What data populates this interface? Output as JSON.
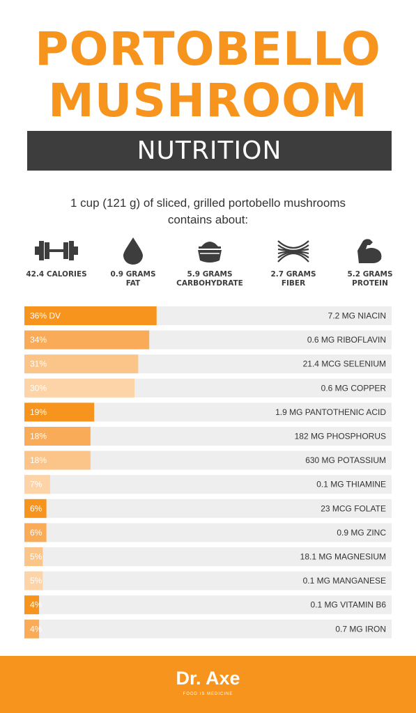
{
  "header": {
    "title_line1": "PORTOBELLO",
    "title_line2": "MUSHROOM",
    "subtitle": "NUTRITION"
  },
  "intro": {
    "line1": "1 cup (121 g) of sliced, grilled portobello mushrooms",
    "line2": "contains about:"
  },
  "stats": [
    {
      "icon": "dumbbell-icon",
      "label": "42.4 CALORIES"
    },
    {
      "icon": "drop-icon",
      "label": "0.9 GRAMS\nFAT"
    },
    {
      "icon": "bowl-icon",
      "label": "5.9 GRAMS\nCARBOHYDRATE"
    },
    {
      "icon": "fiber-icon",
      "label": "2.7 GRAMS\nFIBER"
    },
    {
      "icon": "flexed-arm-icon",
      "label": "5.2 GRAMS\nPROTEIN"
    }
  ],
  "chart_data": {
    "type": "bar",
    "orientation": "horizontal",
    "xlim": [
      0,
      100
    ],
    "categories": [
      "7.2 MG NIACIN",
      "0.6 MG RIBOFLAVIN",
      "21.4 MCG SELENIUM",
      "0.6 MG COPPER",
      "1.9 MG PANTOTHENIC ACID",
      "182 MG PHOSPHORUS",
      "630 MG POTASSIUM",
      "0.1 MG THIAMINE",
      "23 MCG FOLATE",
      "0.9 MG ZINC",
      "18.1 MG MAGNESIUM",
      "0.1 MG MANGANESE",
      "0.1 MG VITAMIN B6",
      "0.7 MG IRON"
    ],
    "values": [
      36,
      34,
      31,
      30,
      19,
      18,
      18,
      7,
      6,
      6,
      5,
      5,
      4,
      4
    ],
    "value_labels": [
      "36% DV",
      "34%",
      "31%",
      "30%",
      "19%",
      "18%",
      "18%",
      "7%",
      "6%",
      "6%",
      "5%",
      "5%",
      "4%",
      "4%"
    ],
    "bar_colors": [
      "#f7941d",
      "#f9ab57",
      "#fbc489",
      "#fcd4a8",
      "#f7941d",
      "#f9ab57",
      "#fbc489",
      "#fcd4a8",
      "#f7941d",
      "#f9ab57",
      "#fbc489",
      "#fcd4a8",
      "#f7941d",
      "#f9ab57"
    ],
    "track_color": "#eeeeee"
  },
  "footer": {
    "brand": "Dr. Axe",
    "tagline": "FOOD IS MEDICINE"
  },
  "colors": {
    "accent": "#f7941d",
    "dark": "#3d3d3d"
  }
}
